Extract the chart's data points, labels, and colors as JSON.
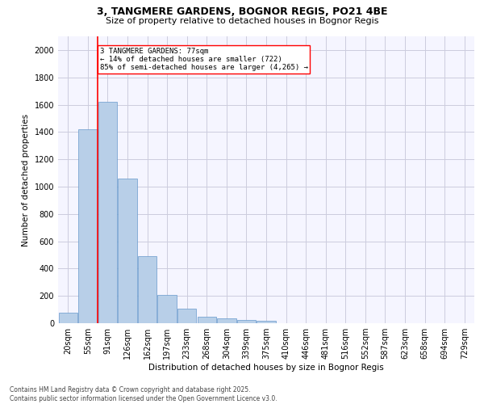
{
  "title_line1": "3, TANGMERE GARDENS, BOGNOR REGIS, PO21 4BE",
  "title_line2": "Size of property relative to detached houses in Bognor Regis",
  "xlabel": "Distribution of detached houses by size in Bognor Regis",
  "ylabel": "Number of detached properties",
  "categories": [
    "20sqm",
    "55sqm",
    "91sqm",
    "126sqm",
    "162sqm",
    "197sqm",
    "233sqm",
    "268sqm",
    "304sqm",
    "339sqm",
    "375sqm",
    "410sqm",
    "446sqm",
    "481sqm",
    "516sqm",
    "552sqm",
    "587sqm",
    "623sqm",
    "658sqm",
    "694sqm",
    "729sqm"
  ],
  "bar_heights": [
    75,
    1420,
    1620,
    1060,
    490,
    205,
    105,
    45,
    35,
    22,
    18,
    0,
    0,
    0,
    0,
    0,
    0,
    0,
    0,
    0,
    0
  ],
  "bar_color": "#b8cfe8",
  "bar_edge_color": "#6699cc",
  "vline_x": 1.5,
  "vline_color": "red",
  "annotation_title": "3 TANGMERE GARDENS: 77sqm",
  "annotation_line1": "← 14% of detached houses are smaller (722)",
  "annotation_line2": "85% of semi-detached houses are larger (4,265) →",
  "annotation_box_color": "white",
  "annotation_box_edge": "red",
  "ylim": [
    0,
    2100
  ],
  "yticks": [
    0,
    200,
    400,
    600,
    800,
    1000,
    1200,
    1400,
    1600,
    1800,
    2000
  ],
  "footer_line1": "Contains HM Land Registry data © Crown copyright and database right 2025.",
  "footer_line2": "Contains public sector information licensed under the Open Government Licence v3.0.",
  "bg_color": "#ffffff",
  "plot_bg_color": "#f5f5ff",
  "grid_color": "#ccccdd",
  "title_fontsize": 9,
  "subtitle_fontsize": 8,
  "axis_label_fontsize": 7.5,
  "tick_fontsize": 7,
  "annotation_fontsize": 6.5,
  "footer_fontsize": 5.5
}
